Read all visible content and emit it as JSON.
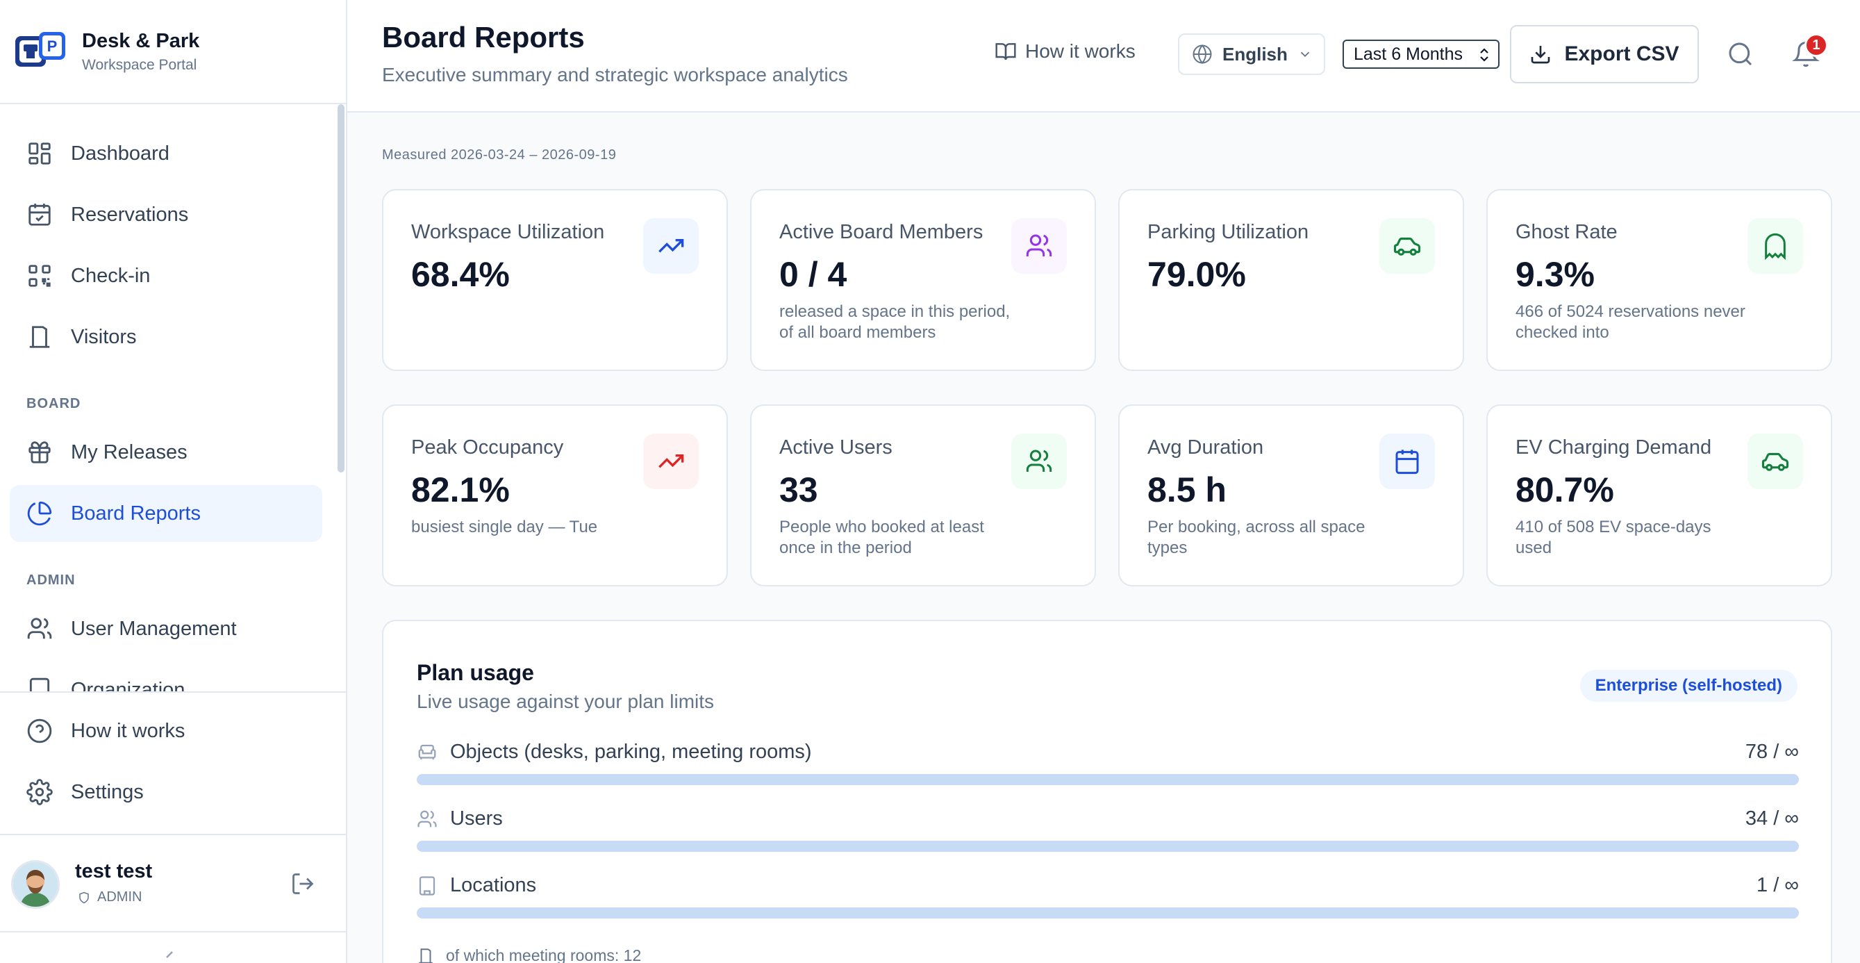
{
  "brand": {
    "name": "Desk & Park",
    "subtitle": "Workspace Portal"
  },
  "sidebar": {
    "items": [
      {
        "label": "Dashboard",
        "icon": "dashboard-icon"
      },
      {
        "label": "Reservations",
        "icon": "calendar-check-icon"
      },
      {
        "label": "Check-in",
        "icon": "qr-code-icon"
      },
      {
        "label": "Visitors",
        "icon": "door-icon"
      }
    ],
    "board_section": "BOARD",
    "board_items": [
      {
        "label": "My Releases",
        "icon": "gift-icon"
      },
      {
        "label": "Board Reports",
        "icon": "pie-chart-icon",
        "active": true
      }
    ],
    "admin_section": "ADMIN",
    "admin_items": [
      {
        "label": "User Management",
        "icon": "users-icon"
      },
      {
        "label": "Organization",
        "icon": "building-icon"
      }
    ],
    "bottom_items": [
      {
        "label": "How it works",
        "icon": "help-circle-icon"
      },
      {
        "label": "Settings",
        "icon": "gear-icon"
      }
    ]
  },
  "user": {
    "name": "test test",
    "role": "ADMIN"
  },
  "header": {
    "title": "Board Reports",
    "subtitle": "Executive summary and strategic workspace analytics",
    "how_it_works": "How it works",
    "language": "English",
    "range": "Last 6 Months",
    "export": "Export CSV",
    "notifications_count": "1"
  },
  "measured": "Measured 2026-03-24 – 2026-09-19",
  "kpis": [
    {
      "label": "Workspace Utilization",
      "value": "68.4%",
      "note": "",
      "icon": "trending-up-icon",
      "color": "#1d4ed8"
    },
    {
      "label": "Active Board Members",
      "value": "0 / 4",
      "note": "released a space in this period, of all board members",
      "icon": "users-icon",
      "color": "#9333ea"
    },
    {
      "label": "Parking Utilization",
      "value": "79.0%",
      "note": "",
      "icon": "car-icon",
      "color": "#15803d"
    },
    {
      "label": "Ghost Rate",
      "value": "9.3%",
      "note": "466 of 5024 reservations never checked into",
      "icon": "ghost-icon",
      "color": "#15803d"
    },
    {
      "label": "Peak Occupancy",
      "value": "82.1%",
      "note": "busiest single day — Tue",
      "icon": "trending-up-icon",
      "color": "#dc2626"
    },
    {
      "label": "Active Users",
      "value": "33",
      "note": "People who booked at least once in the period",
      "icon": "users-icon",
      "color": "#15803d"
    },
    {
      "label": "Avg Duration",
      "value": "8.5 h",
      "note": "Per booking, across all space types",
      "icon": "calendar-icon",
      "color": "#1d4ed8"
    },
    {
      "label": "EV Charging Demand",
      "value": "80.7%",
      "note": "410 of 508 EV space-days used",
      "icon": "car-icon",
      "color": "#15803d"
    }
  ],
  "plan": {
    "title": "Plan usage",
    "subtitle": "Live usage against your plan limits",
    "badge": "Enterprise (self-hosted)",
    "rows": [
      {
        "label": "Objects (desks, parking, meeting rooms)",
        "value": "78 / ∞",
        "icon": "armchair-icon",
        "fill_percent": 100
      },
      {
        "label": "Users",
        "value": "34 / ∞",
        "icon": "users-icon",
        "fill_percent": 100
      },
      {
        "label": "Locations",
        "value": "1 / ∞",
        "icon": "building-icon",
        "fill_percent": 100
      }
    ],
    "meeting_rooms_note": "of which meeting rooms: 12"
  }
}
